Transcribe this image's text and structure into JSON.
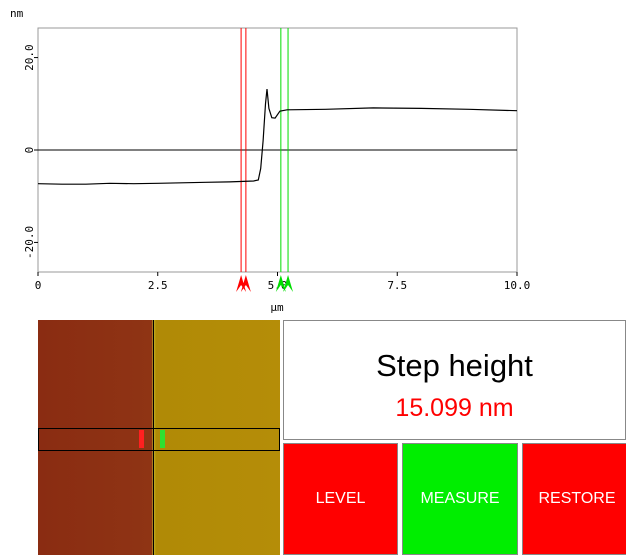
{
  "chart_data": {
    "type": "line",
    "x_label": "μm",
    "y_label": "nm",
    "x": [
      0,
      0.5,
      1.0,
      1.5,
      2.0,
      2.5,
      3.0,
      3.5,
      4.0,
      4.5,
      4.6,
      4.65,
      4.7,
      4.75,
      4.78,
      4.82,
      4.88,
      4.95,
      5.05,
      5.2,
      6,
      7,
      8,
      9,
      10
    ],
    "values": [
      -7.3,
      -7.4,
      -7.4,
      -7.2,
      -7.3,
      -7.2,
      -7.1,
      -7.0,
      -6.9,
      -6.7,
      -6.5,
      -4,
      2,
      10,
      13.2,
      9,
      7,
      6.9,
      8.4,
      8.7,
      8.8,
      9.1,
      9.0,
      8.8,
      8.5
    ],
    "color": "#000000",
    "xlim": [
      0,
      10
    ],
    "ylim": [
      -26.4,
      26.4
    ],
    "xticks": [
      0,
      2.5,
      {
        "value": 5,
        "label": "5.0"
      },
      7.5,
      {
        "value": 10,
        "label": "10.0"
      }
    ],
    "yticks": [
      {
        "value": -20,
        "label": "-20.0"
      },
      0,
      {
        "value": 20,
        "label": "20.0"
      }
    ],
    "zero_line": true,
    "cursors": [
      {
        "x": 4.24,
        "color": "#ff0000"
      },
      {
        "x": 4.34,
        "color": "#ff0000"
      },
      {
        "x": 5.07,
        "color": "#00dd00"
      },
      {
        "x": 5.22,
        "color": "#00dd00"
      }
    ]
  },
  "panel": {
    "title": "Step height",
    "result": "15.099 nm"
  },
  "buttons": [
    {
      "label": "LEVEL",
      "color": "#ff0000"
    },
    {
      "label": "MEASURE",
      "color": "#00ee00"
    },
    {
      "label": "RESTORE",
      "color": "#ff0000"
    }
  ]
}
